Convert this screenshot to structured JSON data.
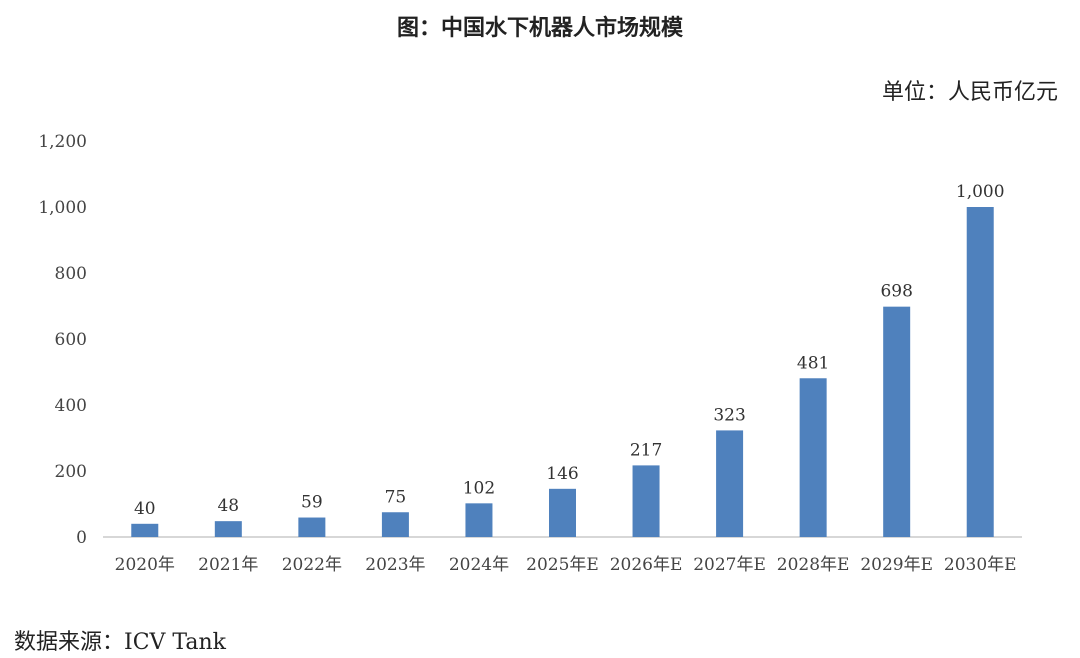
{
  "title": "图：中国水下机器人市场规模",
  "unit_label": "单位：人民币亿元",
  "source": "数据来源：ICV Tank",
  "colors": {
    "bar": "#4f81bd",
    "axis": "#bfbfbf"
  },
  "chart_data": {
    "type": "bar",
    "title": "图：中国水下机器人市场规模",
    "ylabel": "",
    "xlabel": "",
    "categories": [
      "2020年",
      "2021年",
      "2022年",
      "2023年",
      "2024年",
      "2025年E",
      "2026年E",
      "2027年E",
      "2028年E",
      "2029年E",
      "2030年E"
    ],
    "values": [
      40,
      48,
      59,
      75,
      102,
      146,
      217,
      323,
      481,
      698,
      1000
    ],
    "value_labels": [
      "40",
      "48",
      "59",
      "75",
      "102",
      "146",
      "217",
      "323",
      "481",
      "698",
      "1,000"
    ],
    "ylim": [
      0,
      1200
    ],
    "yticks": [
      0,
      200,
      400,
      600,
      800,
      1000,
      1200
    ],
    "ytick_labels": [
      "0",
      "200",
      "400",
      "600",
      "800",
      "1,000",
      "1,200"
    ],
    "grid": false,
    "legend": "none"
  }
}
